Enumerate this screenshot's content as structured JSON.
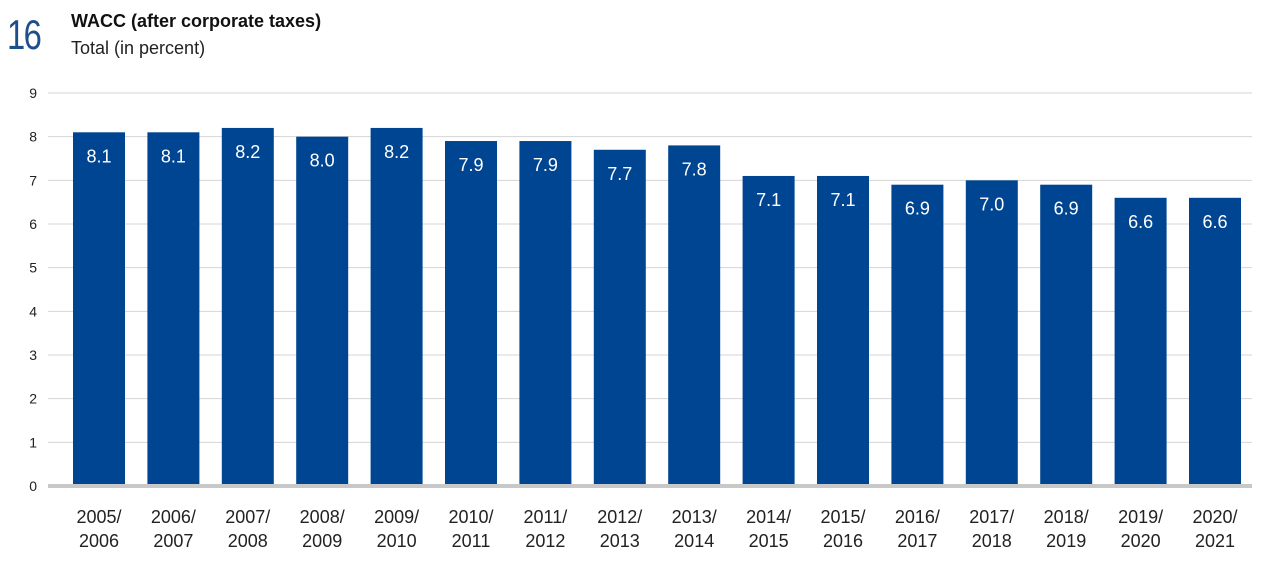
{
  "figure_number": "16",
  "chart_data": {
    "type": "bar",
    "title": "WACC (after corporate taxes)",
    "subtitle": "Total (in percent)",
    "xlabel": "",
    "ylabel": "",
    "ylim": [
      0,
      9
    ],
    "yticks": [
      0,
      1,
      2,
      3,
      4,
      5,
      6,
      7,
      8,
      9
    ],
    "grid": true,
    "categories": [
      [
        "2005/",
        "2006"
      ],
      [
        "2006/",
        "2007"
      ],
      [
        "2007/",
        "2008"
      ],
      [
        "2008/",
        "2009"
      ],
      [
        "2009/",
        "2010"
      ],
      [
        "2010/",
        "2011"
      ],
      [
        "2011/",
        "2012"
      ],
      [
        "2012/",
        "2013"
      ],
      [
        "2013/",
        "2014"
      ],
      [
        "2014/",
        "2015"
      ],
      [
        "2015/",
        "2016"
      ],
      [
        "2016/",
        "2017"
      ],
      [
        "2017/",
        "2018"
      ],
      [
        "2018/",
        "2019"
      ],
      [
        "2019/",
        "2020"
      ],
      [
        "2020/",
        "2021"
      ]
    ],
    "values": [
      8.1,
      8.1,
      8.2,
      8.0,
      8.2,
      7.9,
      7.9,
      7.7,
      7.8,
      7.1,
      7.1,
      6.9,
      7.0,
      6.9,
      6.6,
      6.6
    ],
    "value_labels": [
      "8.1",
      "8.1",
      "8.2",
      "8.0",
      "8.2",
      "7.9",
      "7.9",
      "7.7",
      "7.8",
      "7.1",
      "7.1",
      "6.9",
      "7.0",
      "6.9",
      "6.6",
      "6.6"
    ],
    "colors": {
      "bar": "#004591",
      "grid": "#d4d4d4",
      "baseline": "#c8c8c8",
      "accent": "#1f4e8c"
    }
  }
}
